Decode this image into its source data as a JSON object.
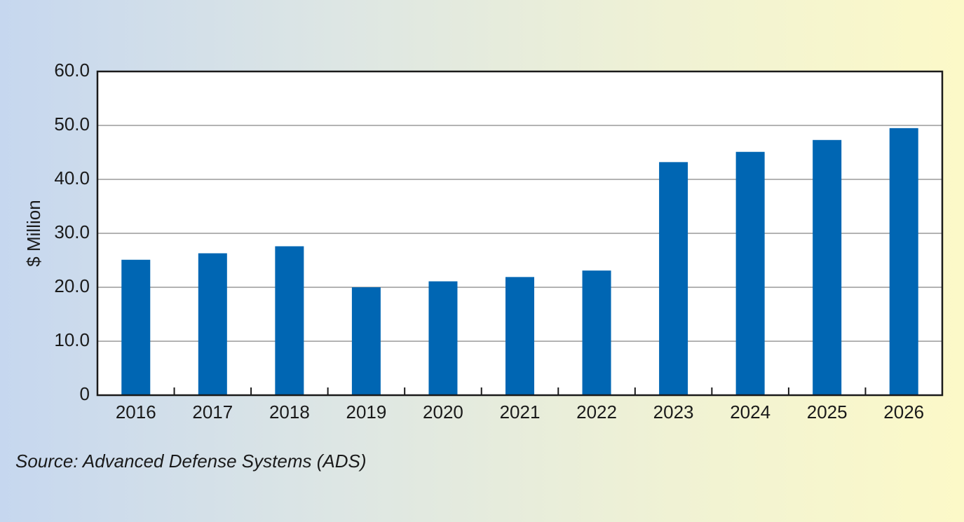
{
  "chart_data": {
    "type": "bar",
    "title": "",
    "xlabel": "",
    "ylabel": "$ Million",
    "categories": [
      "2016",
      "2017",
      "2018",
      "2019",
      "2020",
      "2021",
      "2022",
      "2023",
      "2024",
      "2025",
      "2026"
    ],
    "values": [
      25.1,
      26.3,
      27.6,
      20.0,
      21.1,
      21.9,
      23.1,
      43.2,
      45.1,
      47.3,
      49.5
    ],
    "ylim": [
      0,
      60
    ],
    "yticks": [
      "0",
      "10.0",
      "20.0",
      "30.0",
      "40.0",
      "50.0",
      "60.0"
    ],
    "ytick_values": [
      0,
      10,
      20,
      30,
      40,
      50,
      60
    ],
    "grid": true,
    "legend": "none",
    "bar_color": "#0066b3",
    "grid_color": "#9a9a9a",
    "plot_background": "#ffffff"
  },
  "source": "Source: Advanced Defense Systems (ADS)"
}
